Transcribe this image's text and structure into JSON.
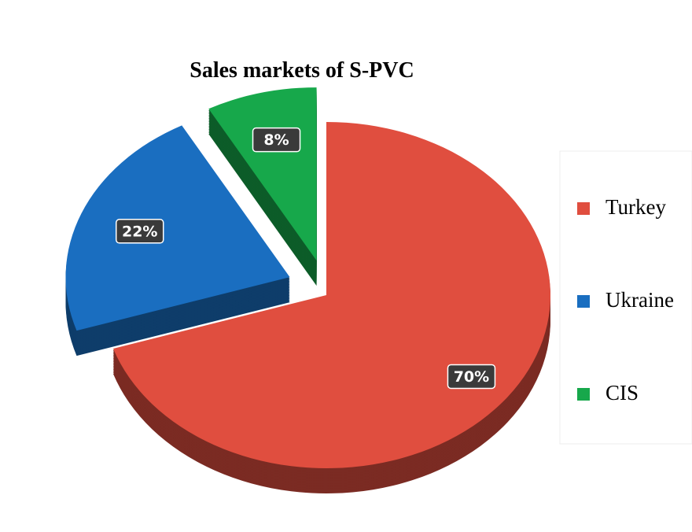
{
  "chart_data": {
    "type": "pie",
    "title": "Sales markets of S-PVC",
    "categories": [
      "Turkey",
      "Ukraine",
      "CIS"
    ],
    "values": [
      70,
      22,
      8
    ],
    "value_labels": [
      "70%",
      "22%",
      "8%"
    ],
    "colors": [
      "#e04e3f",
      "#1a6ec0",
      "#17a84b"
    ],
    "legend": "right"
  }
}
